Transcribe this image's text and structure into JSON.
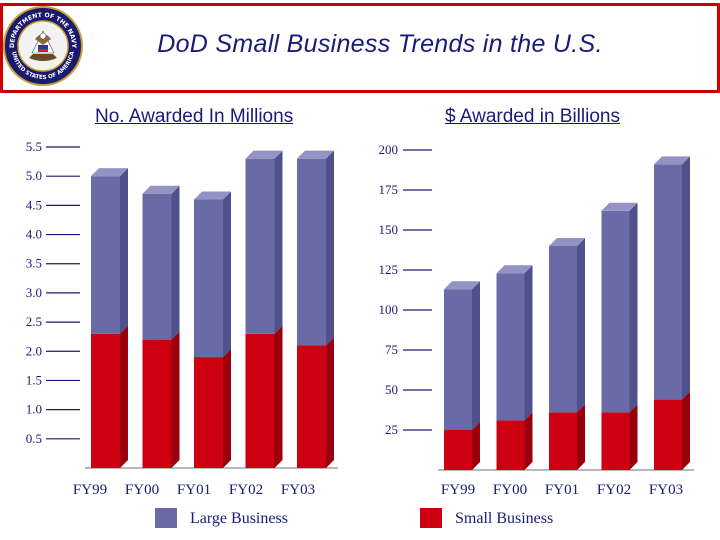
{
  "title": "DoD Small Business Trends in the U.S.",
  "seal": {
    "top_text": "DEPARTMENT OF THE NAVY",
    "bottom_text": "UNITED STATES OF AMERICA"
  },
  "colors": {
    "large": "#6a6aa6",
    "large_side": "#50508c",
    "large_top": "#9494c4",
    "small": "#cc0011",
    "small_side": "#9a000c",
    "accent": "#cc0000",
    "text": "#1a1a7a"
  },
  "legend": {
    "large": "Large Business",
    "small": "Small Business"
  },
  "chart_data": [
    {
      "type": "bar",
      "stacked": true,
      "title": "No. Awarded In Millions",
      "categories": [
        "FY99",
        "FY00",
        "FY01",
        "FY02",
        "FY03"
      ],
      "series": [
        {
          "name": "Small Business",
          "values": [
            2.3,
            2.2,
            1.9,
            2.3,
            2.1
          ]
        },
        {
          "name": "Large Business",
          "values": [
            2.7,
            2.5,
            2.7,
            3.0,
            3.2
          ]
        }
      ],
      "yticks": [
        "0.5",
        "1.0",
        "1.5",
        "2.0",
        "2.5",
        "3.0",
        "3.5",
        "4.0",
        "4.5",
        "5.0",
        "5.5"
      ],
      "ylim": [
        0,
        5.5
      ]
    },
    {
      "type": "bar",
      "stacked": true,
      "title": "$ Awarded in Billions",
      "categories": [
        "FY99",
        "FY00",
        "FY01",
        "FY02",
        "FY03"
      ],
      "series": [
        {
          "name": "Small Business",
          "values": [
            25,
            31,
            36,
            36,
            44
          ]
        },
        {
          "name": "Large Business",
          "values": [
            88,
            92,
            104,
            126,
            147
          ]
        }
      ],
      "yticks": [
        "25",
        "50",
        "75",
        "100",
        "125",
        "150",
        "175",
        "200"
      ],
      "ylim": [
        0,
        200
      ]
    }
  ]
}
